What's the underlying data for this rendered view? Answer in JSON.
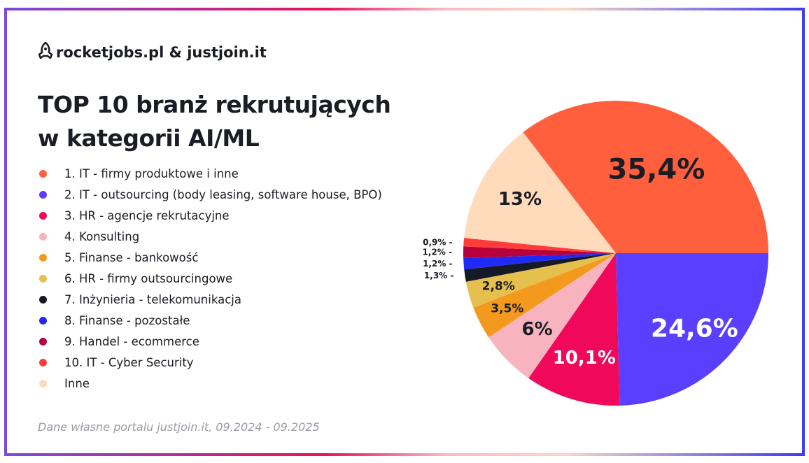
{
  "logo": {
    "text": "rocketjobs.pl & justjoin.it"
  },
  "title": {
    "line1": "TOP 10 branż rekrutujących",
    "line2": "w kategorii AI/ML"
  },
  "footer": "Dane własne portalu justjoin.it, 09.2024 - 09.2025",
  "chart_data": {
    "type": "pie",
    "title": "TOP 10 branż rekrutujących w kategorii AI/ML",
    "legend_placement": "left",
    "slices": [
      {
        "label": "1. IT - firmy produktowe i inne",
        "value": 35.4,
        "text": "35,4%",
        "color": "#FF5F3D"
      },
      {
        "label": "2. IT - outsourcing (body leasing, software house, BPO)",
        "value": 24.6,
        "text": "24,6%",
        "color": "#5A3FFF"
      },
      {
        "label": "3. HR - agencje rekrutacyjne",
        "value": 10.1,
        "text": "10,1%",
        "color": "#F0085A"
      },
      {
        "label": "4. Konsulting",
        "value": 6,
        "text": "6%",
        "color": "#F8B4BE"
      },
      {
        "label": "5. Finanse - bankowość",
        "value": 3.5,
        "text": "3,5%",
        "color": "#F39A1E"
      },
      {
        "label": "6. HR - firmy outsourcingowe",
        "value": 2.8,
        "text": "2,8%",
        "color": "#E5C04F"
      },
      {
        "label": "7. Inżynieria - telekomunikacja",
        "value": 1.3,
        "text": "1,3%",
        "color": "#161A26"
      },
      {
        "label": "8. Finanse - pozostałe",
        "value": 1.2,
        "text": "1,2%",
        "color": "#1F2BF5"
      },
      {
        "label": "9. Handel - ecommerce",
        "value": 1.2,
        "text": "1,2%",
        "color": "#B8003C"
      },
      {
        "label": "10. IT - Cyber Security",
        "value": 0.9,
        "text": "0,9%",
        "color": "#FF3B3B"
      },
      {
        "label": "Inne",
        "value": 13,
        "text": "13%",
        "color": "#FFDBBB"
      }
    ]
  }
}
